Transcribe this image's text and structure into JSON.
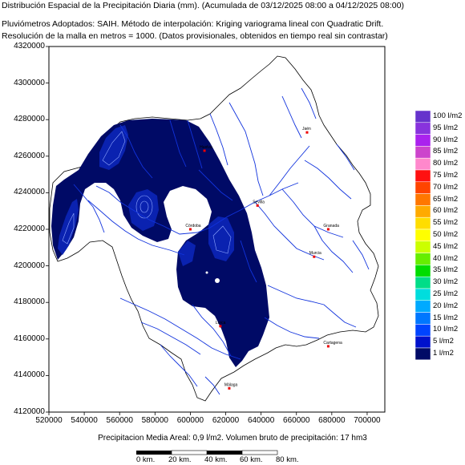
{
  "header": {
    "title": "Distribución Espacial de la Precipitación Diaria (mm). (Acumulada de 03/12/2025 08:00 a 04/12/2025 08:00)",
    "line2": "Pluviómetros Adoptados: SAIH.  Método de interpolación: Kriging variograma lineal con Quadratic Drift.",
    "line3": "Resolución de la malla en metros = 1000. (Datos provisionales, obtenidos en tiempo real sin contrastar)"
  },
  "axes": {
    "y_ticks": [
      "4320000",
      "4300000",
      "4280000",
      "4260000",
      "4240000",
      "4220000",
      "4200000",
      "4180000",
      "4160000",
      "4140000",
      "4120000"
    ],
    "x_ticks": [
      "520000",
      "540000",
      "560000",
      "580000",
      "600000",
      "620000",
      "640000",
      "660000",
      "680000",
      "700000"
    ],
    "xlim": [
      520000,
      710000
    ],
    "ylim": [
      4120000,
      4320000
    ]
  },
  "legend": {
    "entries": [
      {
        "label": "100 l/m2",
        "color": "#6633cc"
      },
      {
        "label": "95 l/m2",
        "color": "#8833dd"
      },
      {
        "label": "90 l/m2",
        "color": "#aa22ee"
      },
      {
        "label": "85 l/m2",
        "color": "#cc44cc"
      },
      {
        "label": "80 l/m2",
        "color": "#ff88cc"
      },
      {
        "label": "75 l/m2",
        "color": "#ff1111"
      },
      {
        "label": "70 l/m2",
        "color": "#ff4400"
      },
      {
        "label": "65 l/m2",
        "color": "#ff7700"
      },
      {
        "label": "60 l/m2",
        "color": "#ffaa00"
      },
      {
        "label": "55 l/m2",
        "color": "#ffdd00"
      },
      {
        "label": "50 l/m2",
        "color": "#ffff00"
      },
      {
        "label": "45 l/m2",
        "color": "#ccff00"
      },
      {
        "label": "40 l/m2",
        "color": "#66ee00"
      },
      {
        "label": "35 l/m2",
        "color": "#00dd00"
      },
      {
        "label": "30 l/m2",
        "color": "#00dd88"
      },
      {
        "label": "25 l/m2",
        "color": "#00dddd"
      },
      {
        "label": "20 l/m2",
        "color": "#00aaff"
      },
      {
        "label": "15 l/m2",
        "color": "#0077ff"
      },
      {
        "label": "10 l/m2",
        "color": "#0044ff"
      },
      {
        "label": "5 l/m2",
        "color": "#0011cc"
      },
      {
        "label": "1 l/m2",
        "color": "#000a66"
      }
    ]
  },
  "towns": [
    {
      "name": "Jaén",
      "x": 666000,
      "y": 4273000
    },
    {
      "name": "Huelva",
      "x": 608000,
      "y": 4263000
    },
    {
      "name": "Sevilla",
      "x": 638000,
      "y": 4233000
    },
    {
      "name": "Córdoba",
      "x": 600000,
      "y": 4220000
    },
    {
      "name": "Granada",
      "x": 678000,
      "y": 4220000
    },
    {
      "name": "Murcia",
      "x": 670000,
      "y": 4205000
    },
    {
      "name": "Lorca",
      "x": 617000,
      "y": 4167000
    },
    {
      "name": "Cartagena",
      "x": 678000,
      "y": 4156000
    },
    {
      "name": "Málaga",
      "x": 622000,
      "y": 4133000
    }
  ],
  "footer": {
    "text": "Precipitacion Media Areal: 0,9 l/m2. Volumen bruto de precipitación: 17 hm3"
  },
  "scale": {
    "labels": [
      "0 km.",
      "20 km.",
      "40 km.",
      "60 km.",
      "80 km."
    ]
  },
  "colors": {
    "map_fill": "#000a66",
    "rivers": "#1133dd",
    "boundary": "#000000"
  }
}
